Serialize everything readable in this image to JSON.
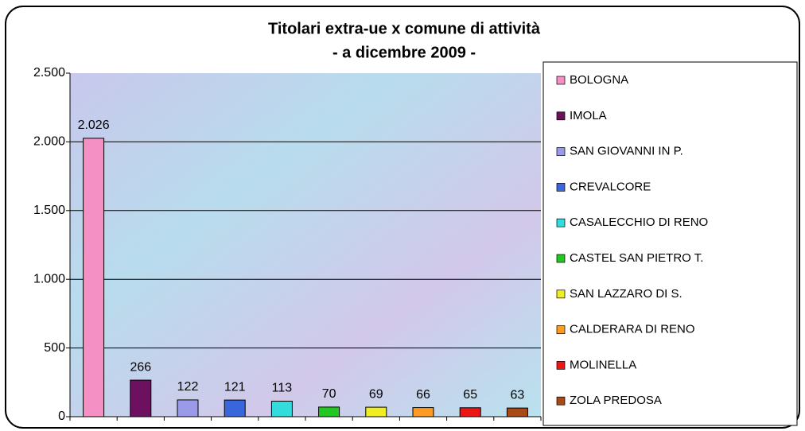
{
  "chart_data": {
    "type": "bar",
    "title": "Titolari extra-ue x comune di attività",
    "subtitle": "- a dicembre 2009 -",
    "categories": [
      "BOLOGNA",
      "IMOLA",
      "SAN GIOVANNI IN P.",
      "CREVALCORE",
      "CASALECCHIO DI RENO",
      "CASTEL SAN PIETRO T.",
      "SAN LAZZARO DI S.",
      "CALDERARA DI RENO",
      "MOLINELLA",
      "ZOLA PREDOSA"
    ],
    "values": [
      2026,
      266,
      122,
      121,
      113,
      70,
      69,
      66,
      65,
      63
    ],
    "value_labels": [
      "2.026",
      "266",
      "122",
      "121",
      "113",
      "70",
      "69",
      "66",
      "65",
      "63"
    ],
    "colors": [
      "#f590c4",
      "#6e1060",
      "#9a9ae8",
      "#3a66dd",
      "#33dcdc",
      "#22c822",
      "#eeee22",
      "#ff9a22",
      "#ee1515",
      "#a84a18"
    ],
    "ylim": [
      0,
      2500
    ],
    "yticks": [
      0,
      500,
      {
        "value": 1000,
        "label": "1.000"
      },
      {
        "value": 1500,
        "label": "1.500"
      },
      {
        "value": 2000,
        "label": "2.000"
      },
      {
        "value": 2500,
        "label": "2.500"
      }
    ],
    "grid": true
  }
}
